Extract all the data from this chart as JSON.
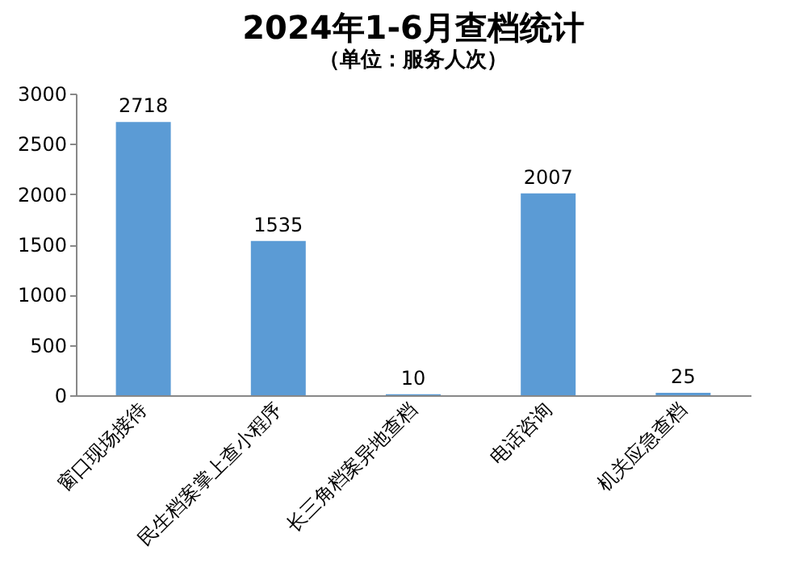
{
  "chart_data": {
    "type": "bar",
    "title": "2024年1-6月查档统计",
    "subtitle": "（单位：服务人次）",
    "categories": [
      "窗口现场接待",
      "民生档案掌上查小程序",
      "长三角档案异地查档",
      "电话咨询",
      "机关应急查档"
    ],
    "values": [
      2718,
      1535,
      10,
      2007,
      25
    ],
    "color": "#5b9bd5",
    "ylim": [
      0,
      3000
    ],
    "yticks": [
      0,
      500,
      1000,
      1500,
      2000,
      2500,
      3000
    ],
    "grid": false,
    "data_labels": true
  }
}
